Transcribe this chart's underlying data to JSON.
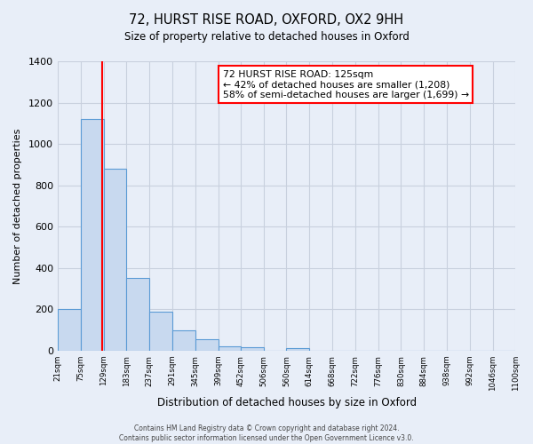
{
  "title": "72, HURST RISE ROAD, OXFORD, OX2 9HH",
  "subtitle": "Size of property relative to detached houses in Oxford",
  "xlabel": "Distribution of detached houses by size in Oxford",
  "ylabel": "Number of detached properties",
  "bar_values": [
    200,
    1120,
    880,
    350,
    190,
    100,
    55,
    20,
    15,
    0,
    10,
    0,
    0,
    0,
    0,
    0,
    0,
    0,
    0,
    0
  ],
  "bin_edges": [
    21,
    75,
    129,
    183,
    237,
    291,
    345,
    399,
    452,
    506,
    560,
    614,
    668,
    722,
    776,
    830,
    884,
    938,
    992,
    1046,
    1100
  ],
  "tick_labels": [
    "21sqm",
    "75sqm",
    "129sqm",
    "183sqm",
    "237sqm",
    "291sqm",
    "345sqm",
    "399sqm",
    "452sqm",
    "506sqm",
    "560sqm",
    "614sqm",
    "668sqm",
    "722sqm",
    "776sqm",
    "830sqm",
    "884sqm",
    "938sqm",
    "992sqm",
    "1046sqm",
    "1100sqm"
  ],
  "bar_color": "#c8d9ef",
  "bar_edge_color": "#5b9bd5",
  "property_line_x": 125,
  "property_line_color": "red",
  "ylim": [
    0,
    1400
  ],
  "yticks": [
    0,
    200,
    400,
    600,
    800,
    1000,
    1200,
    1400
  ],
  "annotation_title": "72 HURST RISE ROAD: 125sqm",
  "annotation_line1": "← 42% of detached houses are smaller (1,208)",
  "annotation_line2": "58% of semi-detached houses are larger (1,699) →",
  "annotation_box_color": "white",
  "annotation_box_edge_color": "red",
  "footer_line1": "Contains HM Land Registry data © Crown copyright and database right 2024.",
  "footer_line2": "Contains public sector information licensed under the Open Government Licence v3.0.",
  "background_color": "#e8eef8",
  "plot_bg_color": "#e8eef8",
  "grid_color": "#c8d0de"
}
